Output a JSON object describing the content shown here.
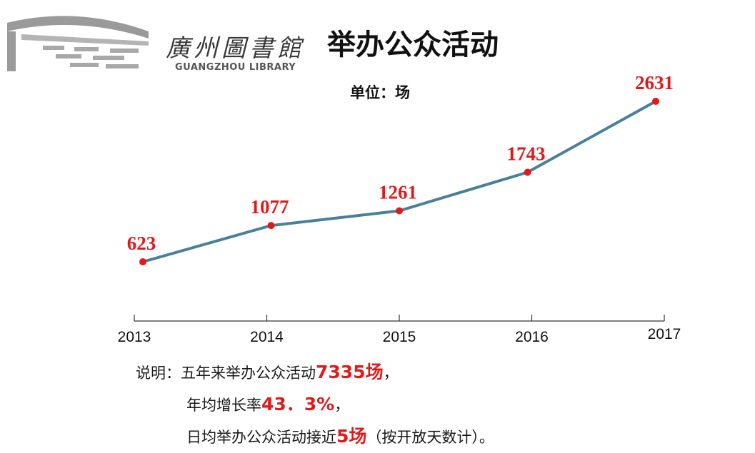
{
  "header": {
    "logo_cn": "廣州圖書館",
    "logo_en": "GUANGZHOU LIBRARY",
    "title": "举办公众活动"
  },
  "colors": {
    "line": "#4a7f9a",
    "marker": "#e01a1a",
    "data_label": "#e01a1a",
    "highlight": "#e01a1a"
  },
  "chart_data": {
    "type": "line",
    "title": "举办公众活动",
    "subtitle": "单位：场",
    "categories": [
      "2013",
      "2014",
      "2015",
      "2016",
      "2017"
    ],
    "values": [
      623,
      1077,
      1261,
      1743,
      2631
    ],
    "data_labels": [
      "623",
      "1077",
      "1261",
      "1743",
      "2631"
    ],
    "ylim": [
      0,
      2800
    ],
    "grid": false,
    "legend": "none"
  },
  "notes": {
    "line1_prefix": "说明：五年来举办公众活动",
    "line1_highlight": "7335场",
    "line1_suffix": "，",
    "line2_prefix": "年均增长率",
    "line2_highlight": "43．3%",
    "line2_suffix": "，",
    "line3_prefix": "日均举办公众活动接近",
    "line3_highlight": "5场",
    "line3_suffix": "（按开放天数计）。"
  }
}
